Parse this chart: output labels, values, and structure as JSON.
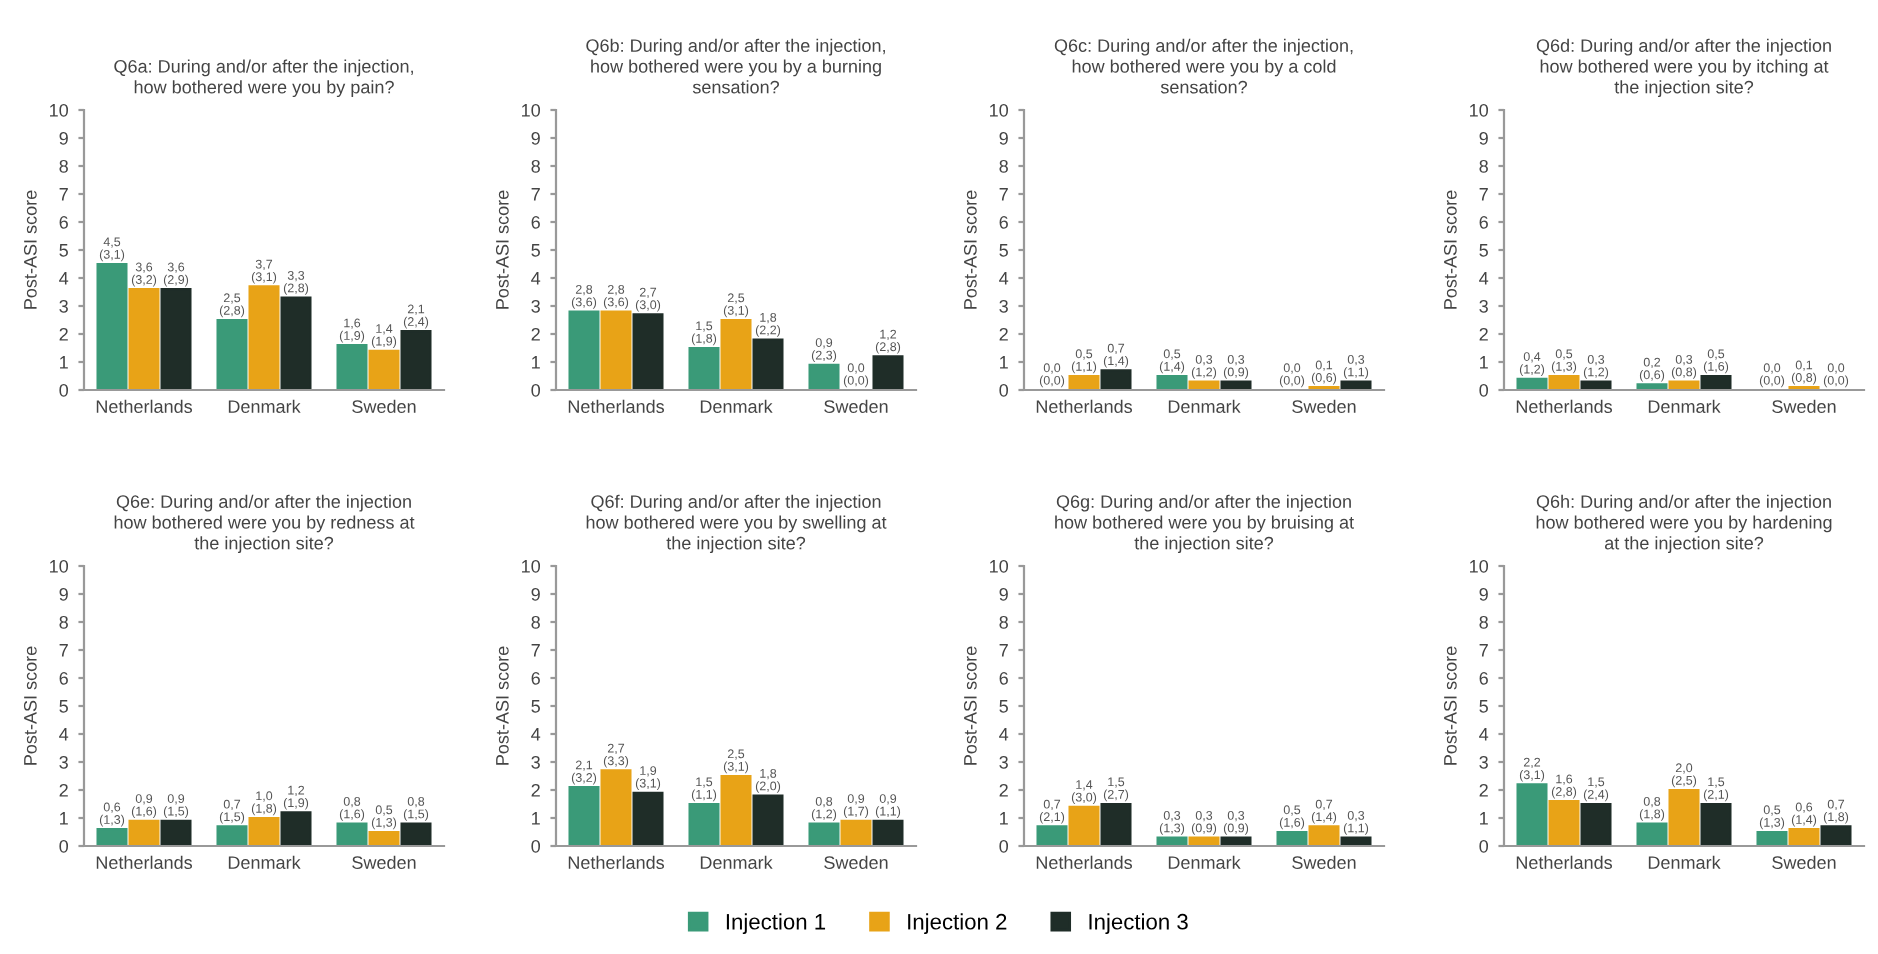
{
  "chart_data": [
    {
      "type": "bar",
      "title": "Q6a: During and/or after the injection,\nhow bothered were you by pain?",
      "ylabel": "Post-ASI score",
      "categories": [
        "Netherlands",
        "Denmark",
        "Sweden"
      ],
      "ylim": [
        0,
        10
      ],
      "yticks": [
        0,
        1,
        2,
        3,
        4,
        5,
        6,
        7,
        8,
        9,
        10
      ],
      "grid": false,
      "legend": "bottom",
      "series": [
        {
          "name": "Injection 1",
          "color": "#3a9a78",
          "values": [
            4.5,
            2.5,
            1.6
          ],
          "value_labels": [
            "4,5\n(3,1)",
            "2,5\n(2,8)",
            "1,6\n(1,9)"
          ]
        },
        {
          "name": "Injection 2",
          "color": "#e8a317",
          "values": [
            3.6,
            3.7,
            1.4
          ],
          "value_labels": [
            "3,6\n(3,2)",
            "3,7\n(3,1)",
            "1,4\n(1,9)"
          ]
        },
        {
          "name": "Injection 3",
          "color": "#1f2d28",
          "values": [
            3.6,
            3.3,
            2.1
          ],
          "value_labels": [
            "3,6\n(2,9)",
            "3,3\n(2,8)",
            "2,1\n(2,4)"
          ]
        }
      ]
    },
    {
      "type": "bar",
      "title": "Q6b: During and/or after the injection,\nhow bothered were you by a burning\nsensation?",
      "ylabel": "Post-ASI score",
      "categories": [
        "Netherlands",
        "Denmark",
        "Sweden"
      ],
      "ylim": [
        0,
        10
      ],
      "yticks": [
        0,
        1,
        2,
        3,
        4,
        5,
        6,
        7,
        8,
        9,
        10
      ],
      "grid": false,
      "series": [
        {
          "color": "#3a9a78",
          "values": [
            2.8,
            1.5,
            0.9
          ],
          "value_labels": [
            "2,8\n(3,6)",
            "1,5\n(1,8)",
            "0,9\n(2,3)"
          ]
        },
        {
          "color": "#e8a317",
          "values": [
            2.8,
            2.5,
            0.0
          ],
          "value_labels": [
            "2,8\n(3,6)",
            "2,5\n(3,1)",
            "0,0\n(0,0)"
          ]
        },
        {
          "color": "#1f2d28",
          "values": [
            2.7,
            1.8,
            1.2
          ],
          "value_labels": [
            "2,7\n(3,0)",
            "1,8\n(2,2)",
            "1,2\n(2,8)"
          ]
        }
      ]
    },
    {
      "type": "bar",
      "title": "Q6c: During and/or after the injection,\nhow bothered were you by a cold\nsensation?",
      "ylabel": "Post-ASI score",
      "categories": [
        "Netherlands",
        "Denmark",
        "Sweden"
      ],
      "ylim": [
        0,
        10
      ],
      "yticks": [
        0,
        1,
        2,
        3,
        4,
        5,
        6,
        7,
        8,
        9,
        10
      ],
      "grid": false,
      "series": [
        {
          "color": "#3a9a78",
          "values": [
            0.0,
            0.5,
            0.0
          ],
          "value_labels": [
            "0,0\n(0,0)",
            "0,5\n(1,4)",
            "0,0\n(0,0)"
          ]
        },
        {
          "color": "#e8a317",
          "values": [
            0.5,
            0.3,
            0.1
          ],
          "value_labels": [
            "0,5\n(1,1)",
            "0,3\n(1,2)",
            "0,1\n(0,6)"
          ]
        },
        {
          "color": "#1f2d28",
          "values": [
            0.7,
            0.3,
            0.3
          ],
          "value_labels": [
            "0,7\n(1,4)",
            "0,3\n(0,9)",
            "0,3\n(1,1)"
          ]
        }
      ]
    },
    {
      "type": "bar",
      "title": "Q6d: During and/or after the injection\nhow bothered were you by itching at\nthe injection site?",
      "ylabel": "Post-ASI score",
      "categories": [
        "Netherlands",
        "Denmark",
        "Sweden"
      ],
      "ylim": [
        0,
        10
      ],
      "yticks": [
        0,
        1,
        2,
        3,
        4,
        5,
        6,
        7,
        8,
        9,
        10
      ],
      "grid": false,
      "series": [
        {
          "color": "#3a9a78",
          "values": [
            0.4,
            0.2,
            0.0
          ],
          "value_labels": [
            "0,4\n(1,2)",
            "0,2\n(0,6)",
            "0,0\n(0,0)"
          ]
        },
        {
          "color": "#e8a317",
          "values": [
            0.5,
            0.3,
            0.1
          ],
          "value_labels": [
            "0,5\n(1,3)",
            "0,3\n(0,8)",
            "0,1\n(0,8)"
          ]
        },
        {
          "color": "#1f2d28",
          "values": [
            0.3,
            0.5,
            0.0
          ],
          "value_labels": [
            "0,3\n(1,2)",
            "0,5\n(1,6)",
            "0,0\n(0,0)"
          ]
        }
      ]
    },
    {
      "type": "bar",
      "title": "Q6e: During and/or after the injection\nhow bothered were you by redness at\nthe injection site?",
      "ylabel": "Post-ASI score",
      "categories": [
        "Netherlands",
        "Denmark",
        "Sweden"
      ],
      "ylim": [
        0,
        10
      ],
      "yticks": [
        0,
        1,
        2,
        3,
        4,
        5,
        6,
        7,
        8,
        9,
        10
      ],
      "grid": false,
      "series": [
        {
          "color": "#3a9a78",
          "values": [
            0.6,
            0.7,
            0.8
          ],
          "value_labels": [
            "0,6\n(1,3)",
            "0,7\n(1,5)",
            "0,8\n(1,6)"
          ]
        },
        {
          "color": "#e8a317",
          "values": [
            0.9,
            1.0,
            0.5
          ],
          "value_labels": [
            "0,9\n(1,6)",
            "1,0\n(1,8)",
            "0,5\n(1,3)"
          ]
        },
        {
          "color": "#1f2d28",
          "values": [
            0.9,
            1.2,
            0.8
          ],
          "value_labels": [
            "0,9\n(1,5)",
            "1,2\n(1,9)",
            "0,8\n(1,5)"
          ]
        }
      ]
    },
    {
      "type": "bar",
      "title": "Q6f: During and/or after the injection\nhow bothered were you by swelling at\nthe injection site?",
      "ylabel": "Post-ASI score",
      "categories": [
        "Netherlands",
        "Denmark",
        "Sweden"
      ],
      "ylim": [
        0,
        10
      ],
      "yticks": [
        0,
        1,
        2,
        3,
        4,
        5,
        6,
        7,
        8,
        9,
        10
      ],
      "grid": false,
      "series": [
        {
          "color": "#3a9a78",
          "values": [
            2.1,
            1.5,
            0.8
          ],
          "value_labels": [
            "2,1\n(3,2)",
            "1,5\n(1,1)",
            "0,8\n(1,2)"
          ]
        },
        {
          "color": "#e8a317",
          "values": [
            2.7,
            2.5,
            0.9
          ],
          "value_labels": [
            "2,7\n(3,3)",
            "2,5\n(3,1)",
            "0,9\n(1,7)"
          ]
        },
        {
          "color": "#1f2d28",
          "values": [
            1.9,
            1.8,
            0.9
          ],
          "value_labels": [
            "1,9\n(3,1)",
            "1,8\n(2,0)",
            "0,9\n(1,1)"
          ]
        }
      ]
    },
    {
      "type": "bar",
      "title": "Q6g: During and/or after the injection\nhow bothered were you by bruising at\nthe injection site?",
      "ylabel": "Post-ASI score",
      "categories": [
        "Netherlands",
        "Denmark",
        "Sweden"
      ],
      "ylim": [
        0,
        10
      ],
      "yticks": [
        0,
        1,
        2,
        3,
        4,
        5,
        6,
        7,
        8,
        9,
        10
      ],
      "grid": false,
      "series": [
        {
          "color": "#3a9a78",
          "values": [
            0.7,
            0.3,
            0.5
          ],
          "value_labels": [
            "0,7\n(2,1)",
            "0,3\n(1,3)",
            "0,5\n(1,6)"
          ]
        },
        {
          "color": "#e8a317",
          "values": [
            1.4,
            0.3,
            0.7
          ],
          "value_labels": [
            "1,4\n(3,0)",
            "0,3\n(0,9)",
            "0,7\n(1,4)"
          ]
        },
        {
          "color": "#1f2d28",
          "values": [
            1.5,
            0.3,
            0.3
          ],
          "value_labels": [
            "1,5\n(2,7)",
            "0,3\n(0,9)",
            "0,3\n(1,1)"
          ]
        }
      ]
    },
    {
      "type": "bar",
      "title": "Q6h: During and/or after the injection\nhow bothered were you by hardening\nat the injection site?",
      "ylabel": "Post-ASI score",
      "categories": [
        "Netherlands",
        "Denmark",
        "Sweden"
      ],
      "ylim": [
        0,
        10
      ],
      "yticks": [
        0,
        1,
        2,
        3,
        4,
        5,
        6,
        7,
        8,
        9,
        10
      ],
      "grid": false,
      "series": [
        {
          "color": "#3a9a78",
          "values": [
            2.2,
            0.8,
            0.5
          ],
          "value_labels": [
            "2,2\n(3,1)",
            "0,8\n(1,8)",
            "0,5\n(1,3)"
          ]
        },
        {
          "color": "#e8a317",
          "values": [
            1.6,
            2.0,
            0.6
          ],
          "value_labels": [
            "1,6\n(2,8)",
            "2,0\n(2,5)",
            "0,6\n(1,4)"
          ]
        },
        {
          "color": "#1f2d28",
          "values": [
            1.5,
            1.5,
            0.7
          ],
          "value_labels": [
            "1,5\n(2,4)",
            "1,5\n(2,1)",
            "0,7\n(1,8)"
          ]
        }
      ]
    }
  ]
}
